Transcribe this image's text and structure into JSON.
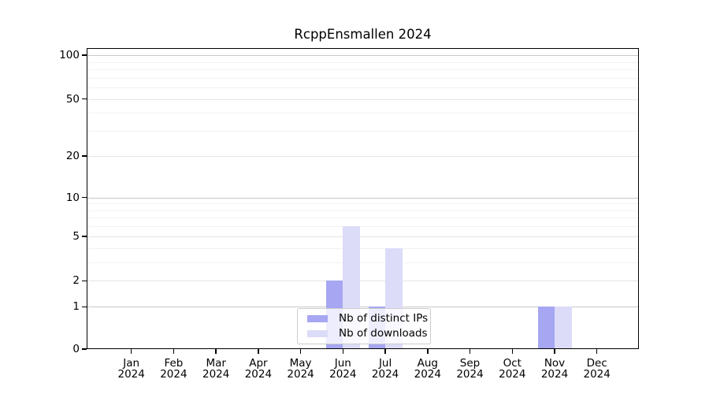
{
  "chart_data": {
    "type": "bar",
    "title": "RcppEnsmallen 2024",
    "x": {
      "months": [
        "Jan",
        "Feb",
        "Mar",
        "Apr",
        "May",
        "Jun",
        "Jul",
        "Aug",
        "Sep",
        "Oct",
        "Nov",
        "Dec"
      ],
      "year": "2024"
    },
    "series": [
      {
        "name": "Nb of distinct IPs",
        "color": "#a6a6f3",
        "values": [
          0,
          0,
          0,
          0,
          0,
          2,
          1,
          0,
          0,
          0,
          1,
          0
        ]
      },
      {
        "name": "Nb of downloads",
        "color": "#dcdcf8",
        "values": [
          0,
          0,
          0,
          0,
          0,
          6,
          4,
          0,
          0,
          0,
          1,
          0
        ]
      }
    ],
    "y_axis": {
      "scale": "log1p",
      "ylim": [
        0,
        112
      ],
      "major_ticks": [
        100,
        50,
        20,
        10,
        5,
        2,
        1,
        0
      ],
      "minor_gridlines": [
        3,
        4,
        6,
        7,
        8,
        9,
        30,
        40,
        60,
        70,
        80,
        90
      ],
      "grid": true
    },
    "legend": {
      "position": "lower center"
    },
    "colors": {
      "bar_distinct_ips": "#a6a6f3",
      "bar_downloads": "#dcdcf8",
      "grid_power10": "#c8c8c8",
      "grid_major": "#e5e5e5",
      "grid_minor": "#f2f2f2",
      "axis": "#000000",
      "background": "#ffffff",
      "legend_border": "#cccccc"
    }
  }
}
